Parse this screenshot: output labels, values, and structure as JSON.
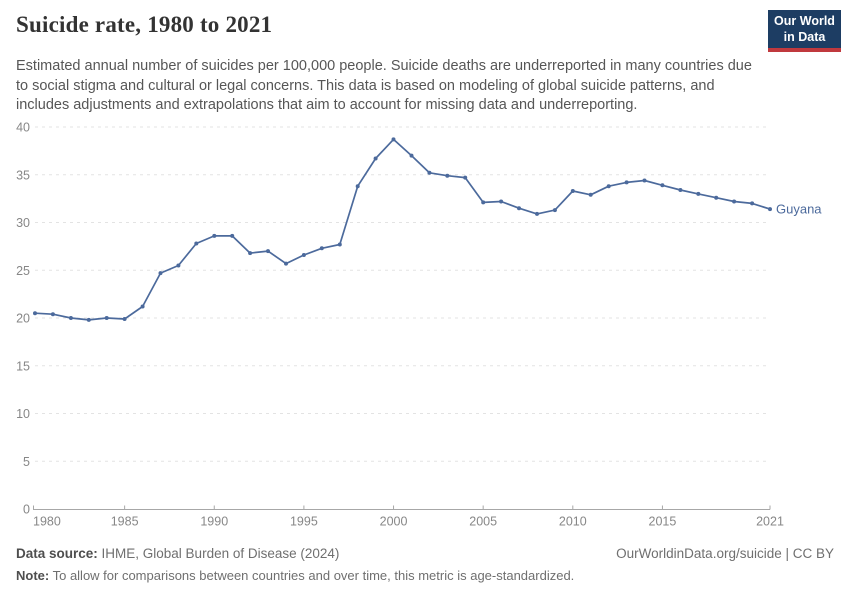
{
  "header": {
    "title": "Suicide rate, 1980 to 2021",
    "subtitle": "Estimated annual number of suicides per 100,000 people. Suicide deaths are underreported in many countries due to social stigma and cultural or legal concerns. This data is based on modeling of global suicide patterns, and includes adjustments and extrapolations that aim to account for missing data and underreporting.",
    "logo": {
      "line1": "Our World",
      "line2": "in Data",
      "bg": "#1d3d63",
      "accent": "#c0393e"
    }
  },
  "chart_data": {
    "type": "line",
    "title": "Suicide rate, 1980 to 2021",
    "xlabel": "",
    "ylabel": "",
    "ylim": [
      0,
      40
    ],
    "yticks": [
      0,
      5,
      10,
      15,
      20,
      25,
      30,
      35,
      40
    ],
    "xticks": [
      1980,
      1985,
      1990,
      1995,
      2000,
      2005,
      2010,
      2015,
      2021
    ],
    "grid": "horizontal-dashed",
    "legend_position": "end-of-line-label",
    "x": [
      1980,
      1981,
      1982,
      1983,
      1984,
      1985,
      1986,
      1987,
      1988,
      1989,
      1990,
      1991,
      1992,
      1993,
      1994,
      1995,
      1996,
      1997,
      1998,
      1999,
      2000,
      2001,
      2002,
      2003,
      2004,
      2005,
      2006,
      2007,
      2008,
      2009,
      2010,
      2011,
      2012,
      2013,
      2014,
      2015,
      2016,
      2017,
      2018,
      2019,
      2020,
      2021
    ],
    "series": [
      {
        "name": "Guyana",
        "color": "#4C6A9C",
        "values": [
          20.5,
          20.4,
          20.0,
          19.8,
          20.0,
          19.9,
          21.2,
          24.7,
          25.5,
          27.8,
          28.6,
          28.6,
          26.8,
          27.0,
          25.7,
          26.6,
          27.3,
          27.7,
          33.8,
          36.7,
          38.7,
          37.0,
          35.2,
          34.9,
          34.7,
          32.1,
          32.2,
          31.5,
          30.9,
          31.3,
          33.3,
          32.9,
          33.8,
          34.2,
          34.4,
          33.9,
          33.4,
          33.0,
          32.6,
          32.2,
          32.0,
          31.4
        ]
      }
    ],
    "colors": {
      "grid": "#e3e3e3",
      "tick": "#878787",
      "axis": "#a7a7a7"
    }
  },
  "footer": {
    "source_label": "Data source:",
    "source_text": " IHME, Global Burden of Disease (2024)",
    "rights": "OurWorldinData.org/suicide | CC BY",
    "note_label": "Note:",
    "note_text": " To allow for comparisons between countries and over time, this metric is age-standardized."
  }
}
